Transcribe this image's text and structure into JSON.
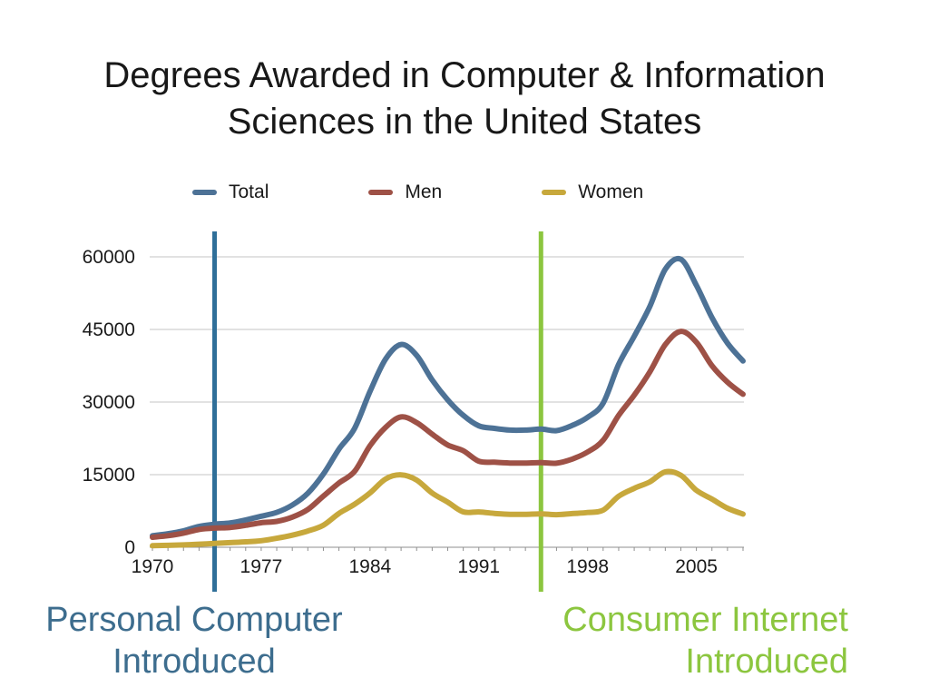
{
  "title": {
    "line1": "Degrees Awarded in Computer & Information",
    "line2": "Sciences in the United States"
  },
  "legend": [
    {
      "label": "Total",
      "color": "#4d7296"
    },
    {
      "label": "Men",
      "color": "#9e5146"
    },
    {
      "label": "Women",
      "color": "#c7a83c"
    }
  ],
  "annotations": [
    {
      "name": "personal-computer-introduced",
      "line1": "Personal Computer",
      "line2": "Introduced",
      "year": 1974,
      "color": "#3d6d8e",
      "line_color": "#2f6f99"
    },
    {
      "name": "consumer-internet-introduced",
      "line1": "Consumer Internet",
      "line2": "Introduced",
      "year": 1995,
      "color": "#8cc63f",
      "line_color": "#8cc63f"
    }
  ],
  "chart_data": {
    "type": "line",
    "title": "Degrees Awarded in Computer & Information Sciences in the United States",
    "xlabel": "",
    "ylabel": "",
    "xlim": [
      1970,
      2008
    ],
    "ylim": [
      0,
      60000
    ],
    "xticks": [
      1970,
      1977,
      1984,
      1991,
      1998,
      2005
    ],
    "yticks": [
      0,
      15000,
      30000,
      45000,
      60000
    ],
    "grid": true,
    "legend_position": "top",
    "x": [
      1970,
      1971,
      1972,
      1973,
      1974,
      1975,
      1976,
      1977,
      1978,
      1979,
      1980,
      1981,
      1982,
      1983,
      1984,
      1985,
      1986,
      1987,
      1988,
      1989,
      1990,
      1991,
      1992,
      1993,
      1994,
      1995,
      1996,
      1997,
      1998,
      1999,
      2000,
      2001,
      2002,
      2003,
      2004,
      2005,
      2006,
      2007,
      2008
    ],
    "series": [
      {
        "name": "Total",
        "color": "#4d7296",
        "values": [
          2388,
          2790,
          3402,
          4305,
          4756,
          5033,
          5652,
          6407,
          7201,
          8719,
          11154,
          15121,
          20267,
          24510,
          32172,
          38878,
          41889,
          39664,
          34548,
          30454,
          27257,
          25083,
          24557,
          24200,
          24200,
          24404,
          24098,
          25159,
          26852,
          29769,
          37788,
          43597,
          49707,
          57433,
          59488,
          54111,
          47480,
          42170,
          38476
        ]
      },
      {
        "name": "Men",
        "color": "#9e5146",
        "values": [
          2064,
          2390,
          2919,
          3668,
          3963,
          4080,
          4530,
          5060,
          5350,
          6220,
          7800,
          10560,
          13270,
          15640,
          20960,
          24770,
          26925,
          25770,
          23360,
          21130,
          19950,
          17780,
          17560,
          17400,
          17400,
          17500,
          17370,
          18210,
          19680,
          22100,
          27250,
          31420,
          36200,
          41860,
          44610,
          42350,
          37520,
          34100,
          31620
        ]
      },
      {
        "name": "Women",
        "color": "#c7a83c",
        "values": [
          324,
          400,
          483,
          637,
          793,
          953,
          1122,
          1347,
          1851,
          2499,
          3354,
          4561,
          6997,
          8870,
          11212,
          14108,
          14964,
          13894,
          11188,
          9324,
          7307,
          7303,
          6997,
          6800,
          6800,
          6904,
          6728,
          6949,
          7172,
          7669,
          10538,
          12177,
          13507,
          15573,
          14878,
          11761,
          9960,
          8070,
          6856
        ]
      }
    ]
  }
}
